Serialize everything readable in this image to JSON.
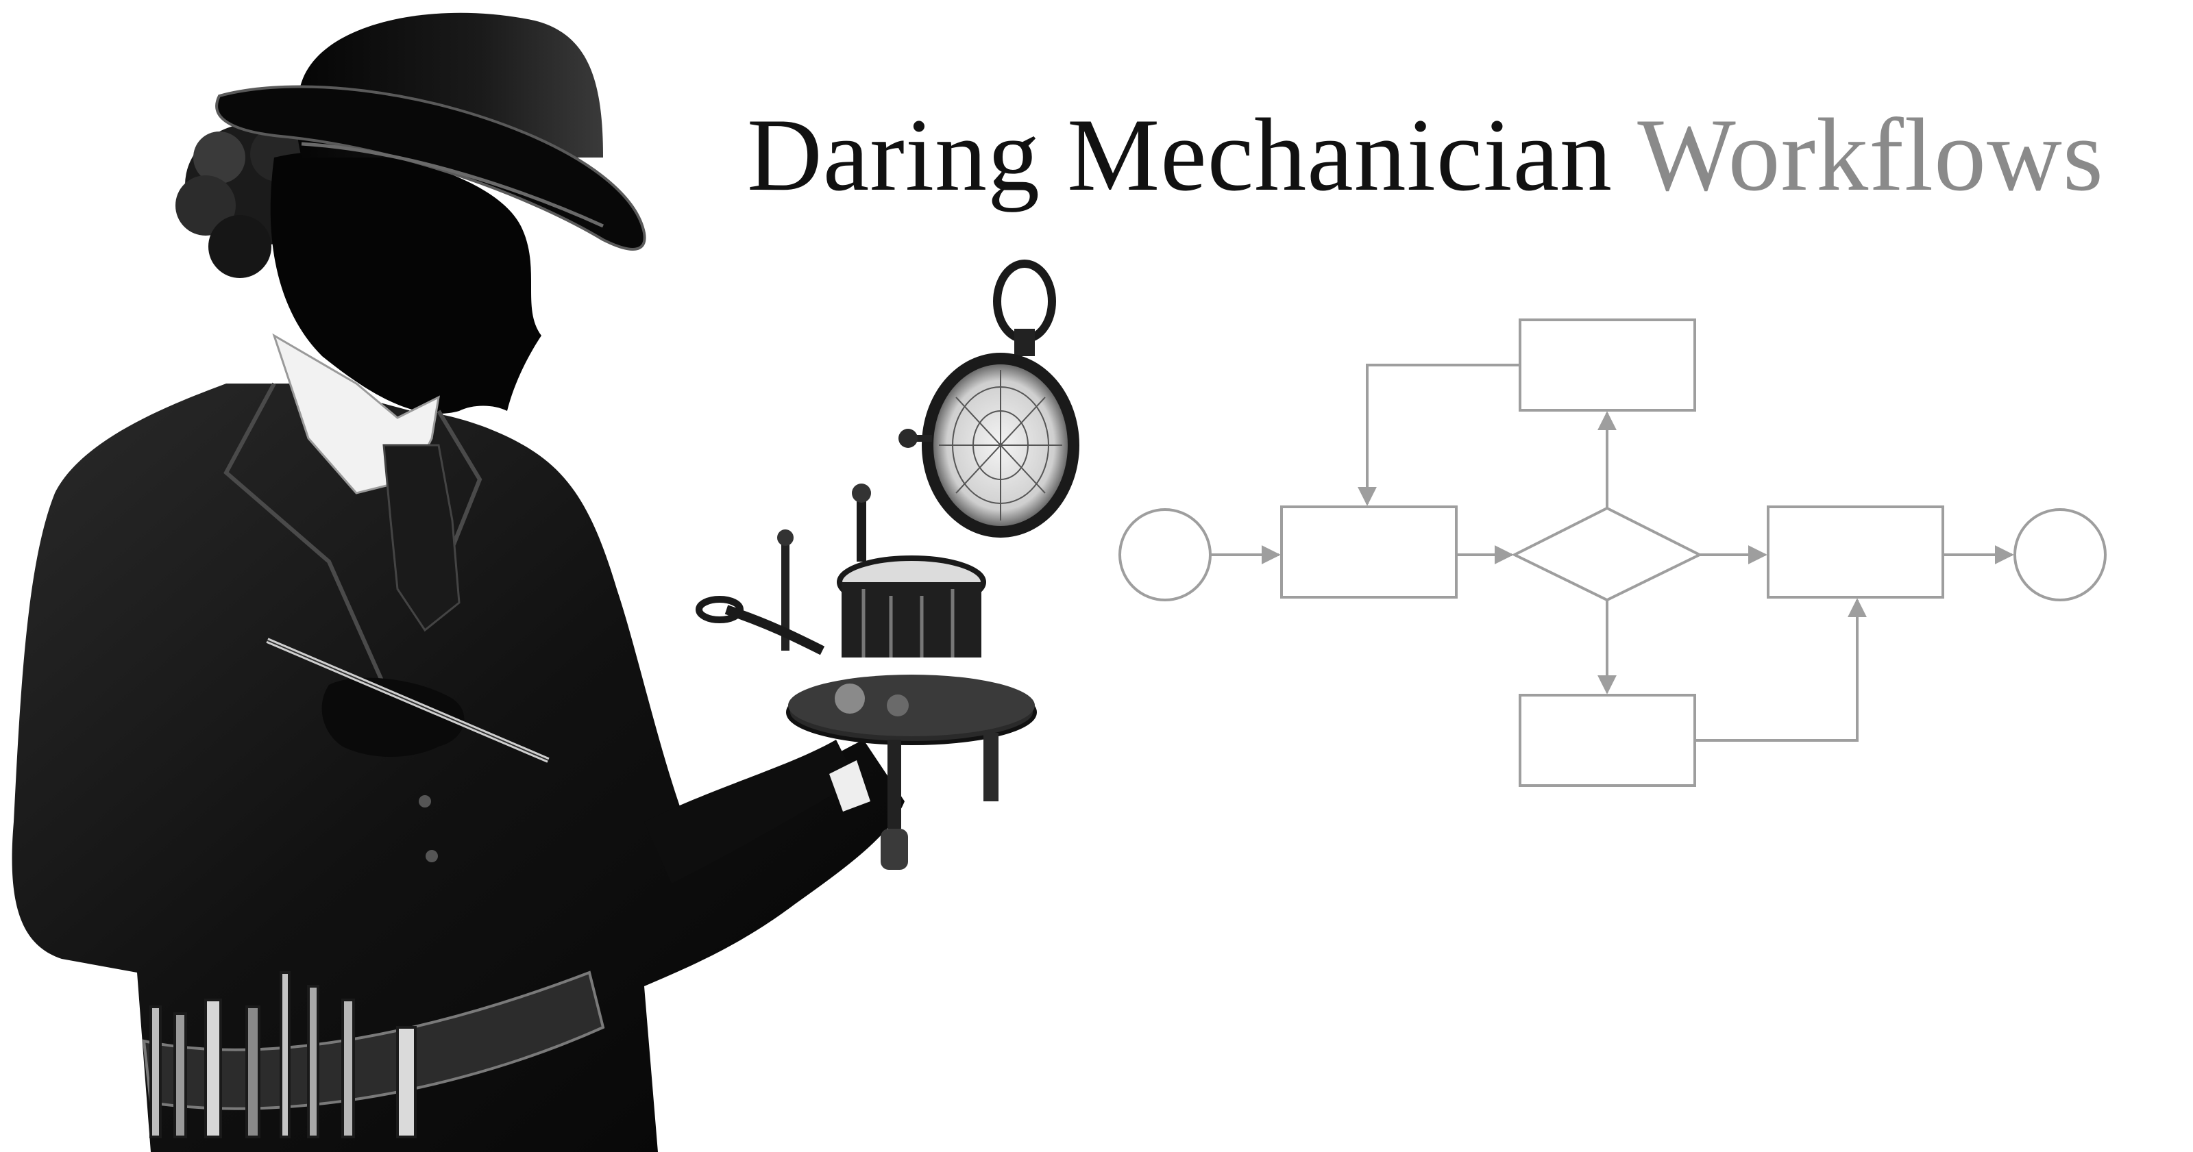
{
  "banner": {
    "title_main": "Daring Mechanician",
    "title_accent": "Workflows"
  },
  "illustration": {
    "subject": "silhouette-of-woman-mechanician-with-bowler-hat-holding-brass-instrument",
    "style": "black-and-white"
  },
  "flowchart": {
    "nodes": [
      {
        "id": "start",
        "shape": "circle"
      },
      {
        "id": "process-1",
        "shape": "rectangle"
      },
      {
        "id": "decision",
        "shape": "diamond"
      },
      {
        "id": "branch-top",
        "shape": "rectangle"
      },
      {
        "id": "branch-bottom",
        "shape": "rectangle"
      },
      {
        "id": "process-2",
        "shape": "rectangle"
      },
      {
        "id": "end",
        "shape": "circle"
      }
    ],
    "edges": [
      {
        "from": "start",
        "to": "process-1"
      },
      {
        "from": "process-1",
        "to": "decision"
      },
      {
        "from": "decision",
        "to": "branch-top"
      },
      {
        "from": "branch-top",
        "to": "process-1"
      },
      {
        "from": "decision",
        "to": "branch-bottom"
      },
      {
        "from": "branch-bottom",
        "to": "process-2"
      },
      {
        "from": "decision",
        "to": "process-2"
      },
      {
        "from": "process-2",
        "to": "end"
      }
    ],
    "stroke_color": "#9e9e9e"
  },
  "colors": {
    "background": "#ffffff",
    "title_dark": "#111111",
    "title_accent": "#8a8a8a",
    "silhouette": "#0d0d0d"
  }
}
